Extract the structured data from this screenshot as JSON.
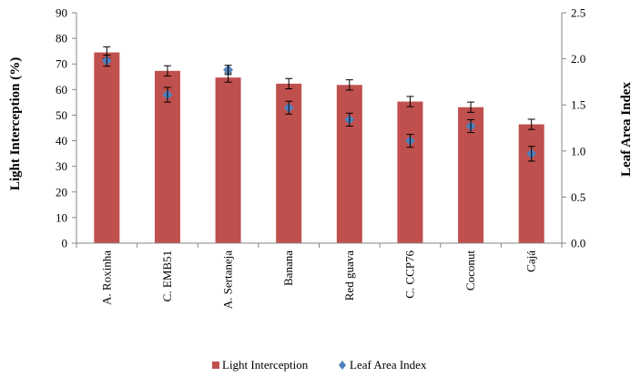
{
  "chart_data": {
    "type": "bar",
    "categories": [
      "A. Roxinha",
      "C. EMB51",
      "A. Sertaneja",
      "Banana",
      "Red guava",
      "C. CCP76",
      "Coconut",
      "Cajá"
    ],
    "series": [
      {
        "name": "Light Interception",
        "type": "bar",
        "axis": "left",
        "color": "#C0504D",
        "values": [
          74.5,
          67.3,
          64.7,
          62.3,
          61.8,
          55.3,
          53.1,
          46.4
        ],
        "error": [
          2.2,
          2.0,
          1.8,
          2.0,
          2.0,
          2.0,
          2.0,
          2.0
        ]
      },
      {
        "name": "Leaf Area Index",
        "type": "scatter",
        "axis": "right",
        "color": "#4F81BD",
        "values": [
          1.98,
          1.61,
          1.88,
          1.47,
          1.34,
          1.11,
          1.27,
          0.97
        ],
        "error": [
          0.06,
          0.08,
          0.05,
          0.07,
          0.07,
          0.07,
          0.07,
          0.08
        ]
      }
    ],
    "ylabel": "Light Interception (%)",
    "ylabel_right": "Leaf Area Index",
    "ylim": [
      0,
      90
    ],
    "ylim_right": [
      0,
      2.5
    ],
    "yticks": [
      "0",
      "10",
      "20",
      "30",
      "40",
      "50",
      "60",
      "70",
      "80",
      "90"
    ],
    "yticks_right": [
      "0.0",
      "0.5",
      "1.0",
      "1.5",
      "2.0",
      "2.5"
    ],
    "legend_position": "bottom",
    "grid": false
  }
}
